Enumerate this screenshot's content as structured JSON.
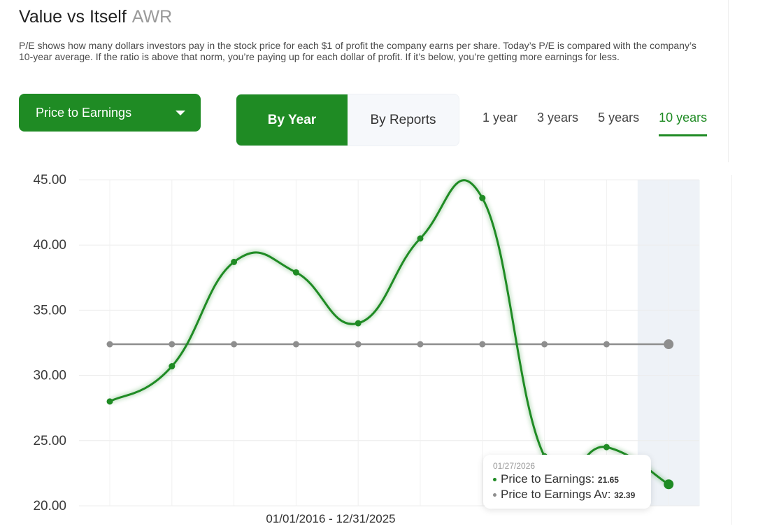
{
  "header": {
    "title": "Value vs Itself",
    "ticker": "AWR"
  },
  "description": "P/E shows how many dollars investors pay in the stock price for each $1 of profit the company earns per share. Today’s P/E is compared with the company’s 10-year average. If the ratio is above that norm, you’re paying up for each dollar of profit. If it’s below, you’re getting more earnings for less.",
  "metric_select": {
    "selected": "Price to Earnings"
  },
  "view_toggle": [
    {
      "label": "By Year",
      "active": true
    },
    {
      "label": "By Reports",
      "active": false
    }
  ],
  "periods": [
    {
      "label": "1 year",
      "active": false
    },
    {
      "label": "3 years",
      "active": false
    },
    {
      "label": "5 years",
      "active": false
    },
    {
      "label": "10 years",
      "active": true
    }
  ],
  "colors": {
    "accent": "#1f8b24",
    "average": "#8e8e8e",
    "highlight": "#eef2f7"
  },
  "tooltip": {
    "date": "01/27/2026",
    "series_label": "Price to Earnings:",
    "series_value": "21.65",
    "avg_label": "Price to Earnings Av:",
    "avg_value": "32.39"
  },
  "chart_data": {
    "type": "line",
    "xlabel": "01/01/2016 - 12/31/2025",
    "ylim": [
      20,
      45
    ],
    "yticks": [
      "20.00",
      "25.00",
      "30.00",
      "35.00",
      "40.00",
      "45.00"
    ],
    "grid": true,
    "series": [
      {
        "name": "Price to Earnings",
        "values": [
          28.0,
          30.7,
          38.7,
          37.9,
          34.0,
          40.5,
          43.6,
          23.8,
          24.5,
          21.65
        ]
      },
      {
        "name": "Price to Earnings Av",
        "values": [
          32.39,
          32.39,
          32.39,
          32.39,
          32.39,
          32.39,
          32.39,
          32.39,
          32.39,
          32.39
        ]
      }
    ],
    "highlighted_index": 9
  }
}
